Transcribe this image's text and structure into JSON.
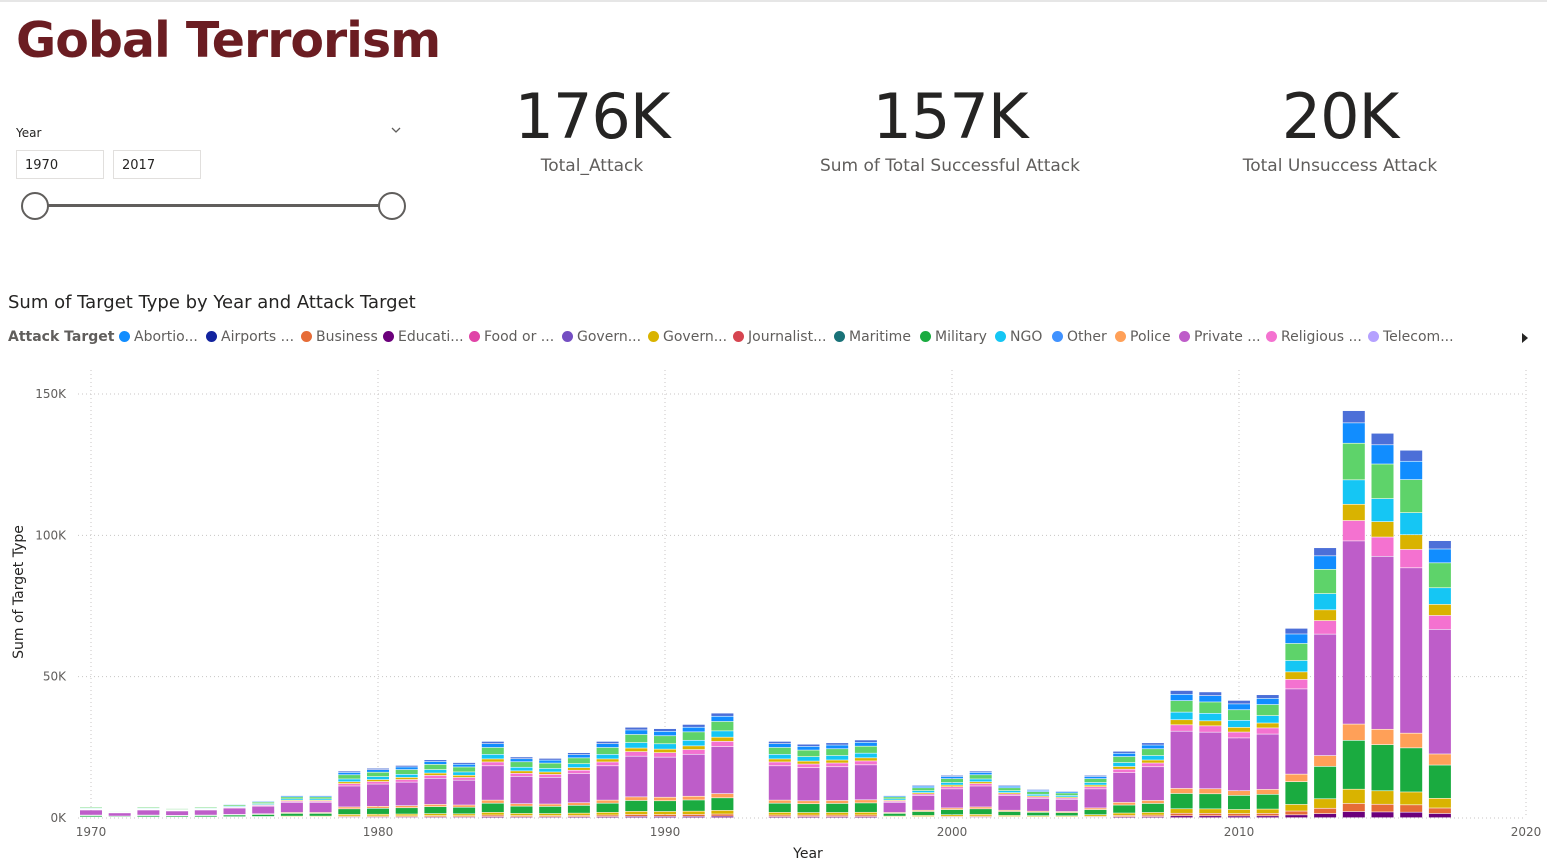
{
  "title": "Gobal Terrorism",
  "slicer": {
    "label": "Year",
    "start": "1970",
    "end": "2017"
  },
  "kpis": [
    {
      "value": "176K",
      "label": "Total_Attack"
    },
    {
      "value": "157K",
      "label": "Sum of Total Successful Attack"
    },
    {
      "value": "20K",
      "label": "Total Unsuccess Attack"
    }
  ],
  "chart_title": "Sum of Target Type by Year and Attack Target",
  "legend": {
    "title": "Attack Target",
    "items": [
      {
        "label": "Abortio...",
        "color": "#118dff"
      },
      {
        "label": "Airports ...",
        "color": "#12239e"
      },
      {
        "label": "Business",
        "color": "#e66c37"
      },
      {
        "label": "Educati...",
        "color": "#6b007b"
      },
      {
        "label": "Food or ...",
        "color": "#e044a7"
      },
      {
        "label": "Govern...",
        "color": "#744ec2"
      },
      {
        "label": "Govern...",
        "color": "#d9b300"
      },
      {
        "label": "Journalist...",
        "color": "#d64550"
      },
      {
        "label": "Maritime",
        "color": "#197278"
      },
      {
        "label": "Military",
        "color": "#1aab40"
      },
      {
        "label": "NGO",
        "color": "#15c6f4"
      },
      {
        "label": "Other",
        "color": "#4092ff"
      },
      {
        "label": "Police",
        "color": "#ffa058"
      },
      {
        "label": "Private ...",
        "color": "#be5dc9"
      },
      {
        "label": "Religious ...",
        "color": "#f472d0"
      },
      {
        "label": "Telecom...",
        "color": "#b5a1ff"
      }
    ]
  },
  "chart_data": {
    "type": "bar",
    "stacked": true,
    "title": "Sum of Target Type by Year and Attack Target",
    "xlabel": "Year",
    "ylabel": "Sum of Target Type",
    "xlim": [
      1970,
      2020
    ],
    "ylim": [
      0,
      150000
    ],
    "x_ticks": [
      "1970",
      "1980",
      "1990",
      "2000",
      "2010",
      "2020"
    ],
    "y_ticks": [
      "0K",
      "50K",
      "100K",
      "150K"
    ],
    "grid": true,
    "legend_position": "top",
    "years": [
      1970,
      1971,
      1972,
      1973,
      1974,
      1975,
      1976,
      1977,
      1978,
      1979,
      1980,
      1981,
      1982,
      1983,
      1984,
      1985,
      1986,
      1987,
      1988,
      1989,
      1990,
      1991,
      1992,
      1994,
      1995,
      1996,
      1997,
      1998,
      1999,
      2000,
      2001,
      2002,
      2003,
      2004,
      2005,
      2006,
      2007,
      2008,
      2009,
      2010,
      2011,
      2012,
      2013,
      2014,
      2015,
      2016,
      2017
    ],
    "totals": [
      4000,
      2500,
      4000,
      3500,
      4000,
      5000,
      6000,
      8000,
      8000,
      16500,
      17500,
      18500,
      20500,
      19500,
      27000,
      21500,
      21000,
      23000,
      27000,
      32000,
      31500,
      33000,
      37000,
      27000,
      26000,
      26500,
      27500,
      8000,
      11500,
      15000,
      16500,
      11500,
      10000,
      9500,
      15000,
      23500,
      26500,
      45000,
      44500,
      41500,
      43500,
      67000,
      95500,
      144000,
      136000,
      130000,
      98000
    ],
    "series_colors": [
      "#6b007b",
      "#e66c37",
      "#d9b300",
      "#1aab40",
      "#ffa058",
      "#be5dc9",
      "#f472d0",
      "#d9b300",
      "#15c6f4",
      "#5ed36a",
      "#118dff",
      "#4c6fd8"
    ],
    "series_shares": [
      0.015,
      0.02,
      0.035,
      0.12,
      0.04,
      0.45,
      0.05,
      0.04,
      0.06,
      0.09,
      0.05,
      0.03
    ]
  }
}
